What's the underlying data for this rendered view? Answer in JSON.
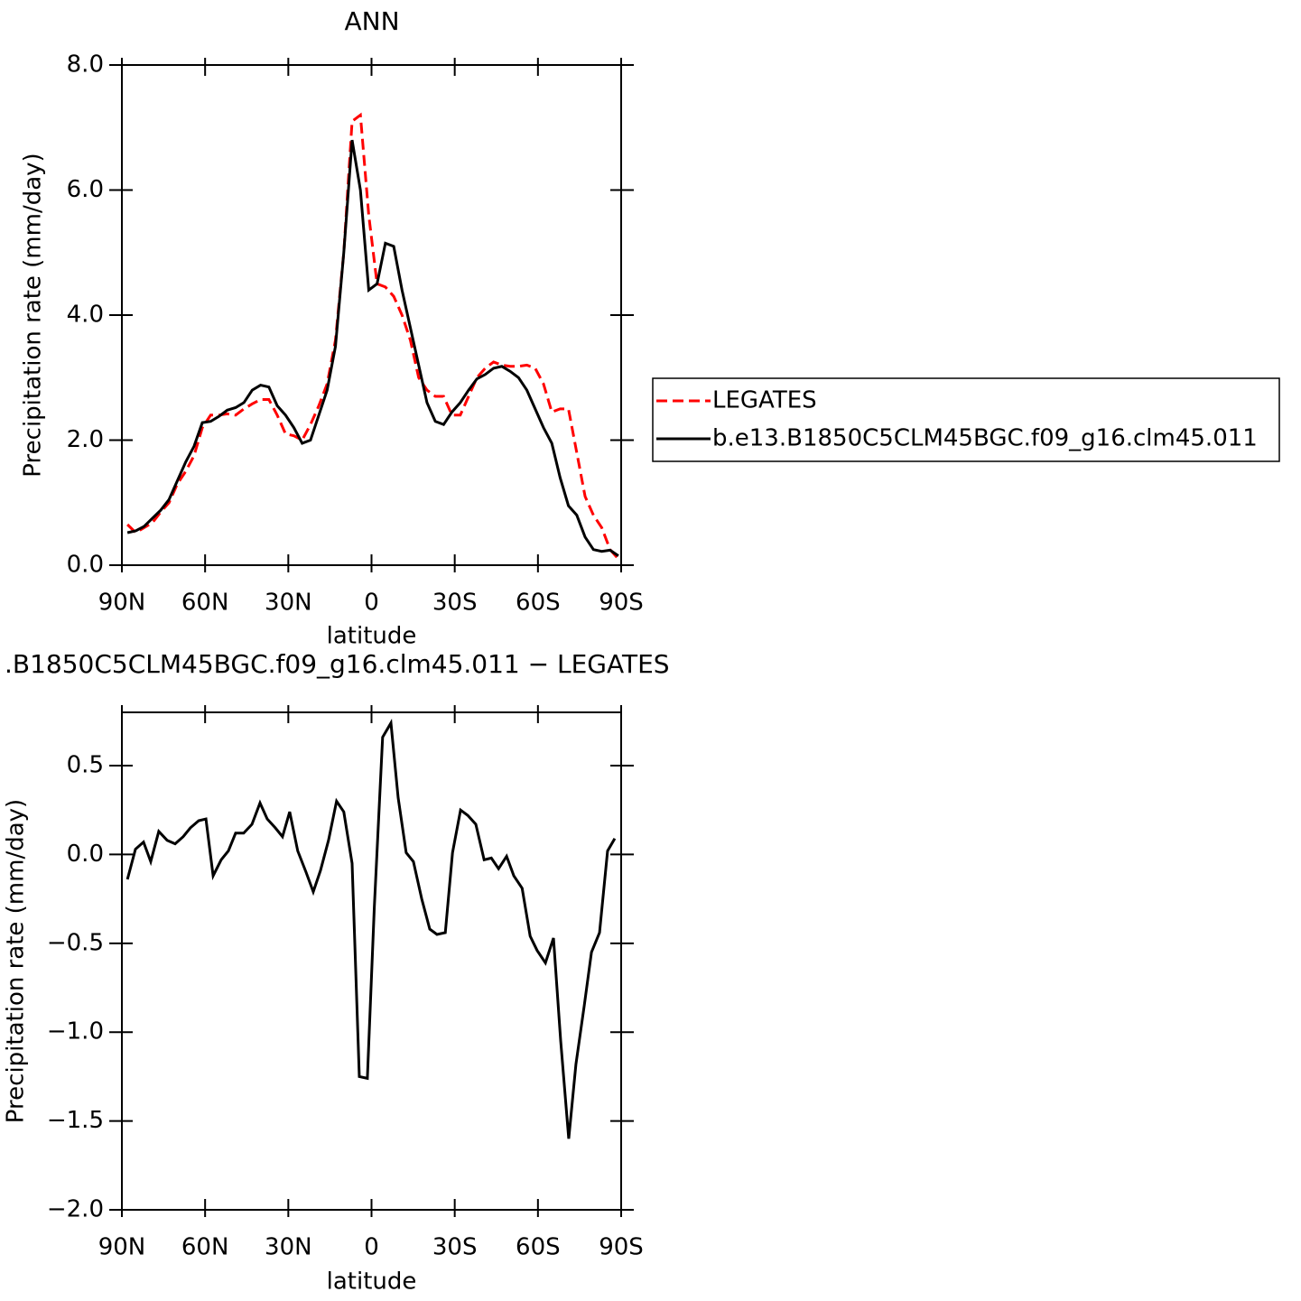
{
  "chart_data": [
    {
      "type": "line",
      "title": "ANN",
      "xlabel": "latitude",
      "ylabel": "Precipitation rate (mm/day)",
      "x": [
        88,
        85,
        82,
        79,
        76,
        73,
        70,
        67,
        64,
        61,
        58,
        55,
        52,
        49,
        46,
        43,
        40,
        37,
        34,
        31,
        28,
        25,
        22,
        19,
        16,
        13,
        10,
        7,
        4,
        1,
        -2,
        -5,
        -8,
        -11,
        -14,
        -17,
        -20,
        -23,
        -26,
        -29,
        -32,
        -35,
        -38,
        -41,
        -44,
        -47,
        -50,
        -53,
        -56,
        -59,
        -62,
        -65,
        -68,
        -71,
        -74,
        -77,
        -80,
        -83,
        -86,
        -89
      ],
      "series": [
        {
          "name": "LEGATES",
          "color": "#ff0000",
          "dashed": true,
          "values": [
            0.65,
            0.52,
            0.6,
            0.68,
            0.85,
            1.0,
            1.3,
            1.5,
            1.75,
            2.2,
            2.4,
            2.4,
            2.42,
            2.4,
            2.5,
            2.58,
            2.65,
            2.65,
            2.4,
            2.1,
            2.07,
            2.0,
            2.25,
            2.55,
            2.9,
            3.6,
            5.0,
            7.1,
            7.2,
            5.6,
            4.5,
            4.45,
            4.3,
            4.0,
            3.6,
            3.0,
            2.8,
            2.7,
            2.7,
            2.4,
            2.4,
            2.7,
            3.0,
            3.15,
            3.25,
            3.2,
            3.18,
            3.18,
            3.2,
            3.15,
            2.9,
            2.45,
            2.5,
            2.5,
            1.8,
            1.1,
            0.8,
            0.6,
            0.25,
            0.1
          ]
        },
        {
          "name": "b.e13.B1850C5CLM45BGC.f09_g16.clm45.011",
          "color": "#000000",
          "dashed": false,
          "values": [
            0.52,
            0.55,
            0.62,
            0.75,
            0.88,
            1.05,
            1.35,
            1.65,
            1.9,
            2.28,
            2.3,
            2.38,
            2.48,
            2.52,
            2.6,
            2.8,
            2.88,
            2.85,
            2.55,
            2.4,
            2.2,
            1.95,
            2.0,
            2.4,
            2.8,
            3.5,
            5.0,
            6.8,
            6.0,
            4.4,
            4.5,
            5.15,
            5.1,
            4.4,
            3.8,
            3.2,
            2.6,
            2.3,
            2.25,
            2.45,
            2.6,
            2.8,
            2.98,
            3.05,
            3.15,
            3.18,
            3.1,
            3.0,
            2.8,
            2.5,
            2.2,
            1.95,
            1.4,
            0.95,
            0.8,
            0.45,
            0.25,
            0.22,
            0.24,
            0.15
          ]
        }
      ],
      "xlim": [
        90,
        -90
      ],
      "xticks": [
        {
          "value": 90,
          "label": "90N"
        },
        {
          "value": 60,
          "label": "60N"
        },
        {
          "value": 30,
          "label": "30N"
        },
        0,
        {
          "value": -30,
          "label": "30S"
        },
        {
          "value": -60,
          "label": "60S"
        },
        {
          "value": -90,
          "label": "90S"
        }
      ],
      "ylim": [
        0,
        8
      ],
      "yticks": [
        {
          "value": 0,
          "label": "0.0"
        },
        {
          "value": 2,
          "label": "2.0"
        },
        {
          "value": 4,
          "label": "4.0"
        },
        {
          "value": 6,
          "label": "6.0"
        },
        {
          "value": 8,
          "label": "8.0"
        }
      ],
      "legend": "right"
    },
    {
      "type": "line",
      "title": ".B1850C5CLM45BGC.f09_g16.clm45.011 − LEGATES",
      "xlabel": "latitude",
      "ylabel": "Precipitation rate (mm/day)",
      "x": [
        88.0,
        85.1,
        82.2,
        79.6,
        76.7,
        73.7,
        70.8,
        67.9,
        65.3,
        62.3,
        59.7,
        57.1,
        54.2,
        51.6,
        49.0,
        46.1,
        43.1,
        40.2,
        37.6,
        34.7,
        32.1,
        29.5,
        26.6,
        23.6,
        21.0,
        18.4,
        15.5,
        12.6,
        10.0,
        7.0,
        4.4,
        1.5,
        -1.0,
        -4.0,
        -7.0,
        -9.6,
        -12.5,
        -15.1,
        -18.1,
        -21.0,
        -23.6,
        -26.6,
        -29.2,
        -32.1,
        -34.7,
        -37.6,
        -40.6,
        -43.2,
        -45.8,
        -48.7,
        -51.3,
        -54.3,
        -57.2,
        -59.7,
        -62.7,
        -65.6,
        -68.2,
        -71.1,
        -73.7,
        -76.7,
        -79.3,
        -82.2,
        -85.1,
        -87.7
      ],
      "series": [
        {
          "color": "#000000",
          "dashed": false,
          "values": [
            -0.14,
            0.03,
            0.07,
            -0.04,
            0.13,
            0.08,
            0.06,
            0.1,
            0.15,
            0.19,
            0.2,
            -0.12,
            -0.03,
            0.02,
            0.12,
            0.12,
            0.17,
            0.29,
            0.2,
            0.15,
            0.1,
            0.24,
            0.02,
            -0.1,
            -0.21,
            -0.09,
            0.08,
            0.3,
            0.24,
            -0.05,
            -1.25,
            -1.26,
            -0.3,
            0.66,
            0.74,
            0.32,
            0.01,
            -0.04,
            -0.25,
            -0.42,
            -0.45,
            -0.44,
            0.01,
            0.25,
            0.22,
            0.17,
            -0.03,
            -0.02,
            -0.08,
            -0.01,
            -0.12,
            -0.19,
            -0.46,
            -0.54,
            -0.61,
            -0.47,
            -1.05,
            -1.6,
            -1.18,
            -0.85,
            -0.55,
            -0.44,
            0.02,
            0.09
          ]
        }
      ],
      "xlim": [
        90,
        -90
      ],
      "xticks": [
        {
          "value": 90,
          "label": "90N"
        },
        {
          "value": 60,
          "label": "60N"
        },
        {
          "value": 30,
          "label": "30N"
        },
        0,
        {
          "value": -30,
          "label": "30S"
        },
        {
          "value": -60,
          "label": "60S"
        },
        {
          "value": -90,
          "label": "90S"
        }
      ],
      "ylim": [
        -2.0,
        0.8
      ],
      "yticks": [
        0.5,
        {
          "value": 0,
          "label": "0.0"
        },
        {
          "value": -0.5,
          "label": "−0.5"
        },
        {
          "value": -1,
          "label": "−1.0"
        },
        {
          "value": -1.5,
          "label": "−1.5"
        },
        {
          "value": -2,
          "label": "−2.0"
        }
      ]
    }
  ]
}
